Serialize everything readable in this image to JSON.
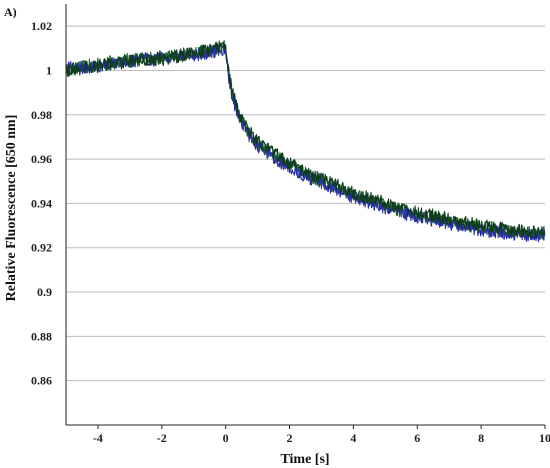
{
  "chart_data": {
    "type": "line",
    "panel_label": "A)",
    "xlabel": "Time [s]",
    "ylabel": "Relative Fluorescence [650 nm]",
    "xlim": [
      -5,
      10
    ],
    "ylim": [
      0.84,
      1.03
    ],
    "x_ticks": [
      -4,
      -2,
      0,
      2,
      4,
      6,
      8,
      10
    ],
    "x_tick_labels": [
      "-4",
      "-2",
      "0",
      "2",
      "4",
      "6",
      "8",
      "10"
    ],
    "y_ticks": [
      0.86,
      0.88,
      0.9,
      0.92,
      0.94,
      0.96,
      0.98,
      1.0,
      1.02
    ],
    "y_tick_labels": [
      "0.86",
      "0.88",
      "0.9",
      "0.92",
      "0.94",
      "0.96",
      "0.98",
      "1",
      "1.02"
    ],
    "grid": "horizontal",
    "legend": "none",
    "series": [
      {
        "color": "#1a6b2a",
        "x": [
          -5,
          -4,
          -3,
          -2,
          -1,
          -0.5,
          -0.1,
          0,
          0.1,
          0.2,
          0.4,
          0.7,
          1,
          1.5,
          2,
          3,
          4,
          5,
          6,
          7,
          8,
          9,
          10
        ],
        "y": [
          1.0,
          1.003,
          1.005,
          1.006,
          1.008,
          1.009,
          1.011,
          1.01,
          0.997,
          0.99,
          0.98,
          0.972,
          0.967,
          0.962,
          0.957,
          0.95,
          0.944,
          0.939,
          0.935,
          0.932,
          0.929,
          0.927,
          0.926
        ]
      },
      {
        "color": "#2a2fa8",
        "x": [
          -5,
          -4,
          -3,
          -2,
          -1,
          -0.5,
          -0.1,
          0,
          0.1,
          0.2,
          0.4,
          0.7,
          1,
          1.5,
          2,
          3,
          4,
          5,
          6,
          7,
          8,
          9,
          10
        ],
        "y": [
          1.001,
          1.002,
          1.004,
          1.006,
          1.007,
          1.008,
          1.01,
          1.009,
          0.996,
          0.989,
          0.979,
          0.971,
          0.966,
          0.961,
          0.956,
          0.949,
          0.943,
          0.938,
          0.934,
          0.931,
          0.928,
          0.926,
          0.925
        ]
      },
      {
        "color": "#0f3d1c",
        "x": [
          -5,
          -4,
          -3,
          -2,
          -1,
          -0.5,
          -0.1,
          0,
          0.1,
          0.2,
          0.4,
          0.7,
          1,
          1.5,
          2,
          3,
          4,
          5,
          6,
          7,
          8,
          9,
          10
        ],
        "y": [
          1.0,
          1.002,
          1.004,
          1.005,
          1.008,
          1.009,
          1.012,
          1.011,
          0.998,
          0.991,
          0.981,
          0.973,
          0.968,
          0.963,
          0.958,
          0.951,
          0.945,
          0.94,
          0.936,
          0.933,
          0.93,
          0.928,
          0.927
        ]
      }
    ]
  }
}
